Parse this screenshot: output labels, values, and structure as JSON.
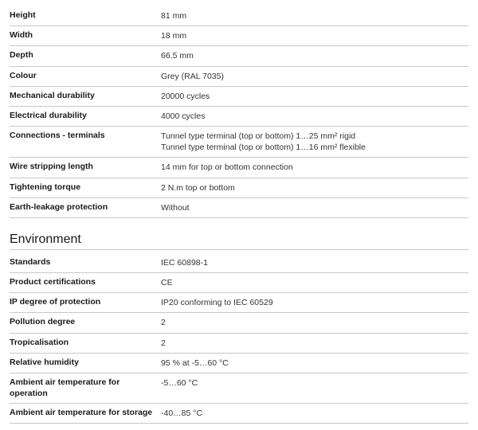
{
  "section1": {
    "rows": [
      {
        "label": "Height",
        "value": "81 mm"
      },
      {
        "label": "Width",
        "value": "18 mm"
      },
      {
        "label": "Depth",
        "value": "66.5 mm"
      },
      {
        "label": "Colour",
        "value": "Grey (RAL 7035)"
      },
      {
        "label": "Mechanical durability",
        "value": "20000 cycles"
      },
      {
        "label": "Electrical durability",
        "value": "4000 cycles"
      },
      {
        "label": "Connections - terminals",
        "value": "Tunnel type terminal (top or bottom) 1…25 mm² rigid\nTunnel type terminal (top or bottom) 1…16 mm² flexible"
      },
      {
        "label": "Wire stripping length",
        "value": "14 mm for top or bottom connection"
      },
      {
        "label": "Tightening torque",
        "value": "2 N.m top or bottom"
      },
      {
        "label": "Earth-leakage protection",
        "value": "Without"
      }
    ]
  },
  "section2": {
    "title": "Environment",
    "rows": [
      {
        "label": "Standards",
        "value": "IEC 60898-1"
      },
      {
        "label": "Product certifications",
        "value": "CE"
      },
      {
        "label": "IP degree of protection",
        "value": "IP20 conforming to IEC 60529"
      },
      {
        "label": "Pollution degree",
        "value": "2"
      },
      {
        "label": "Tropicalisation",
        "value": "2"
      },
      {
        "label": "Relative humidity",
        "value": "95 % at -5…60 °C"
      },
      {
        "label": "Ambient air temperature for operation",
        "value": "-5…60 °C"
      },
      {
        "label": "Ambient air temperature for storage",
        "value": "-40…85 °C"
      }
    ]
  }
}
